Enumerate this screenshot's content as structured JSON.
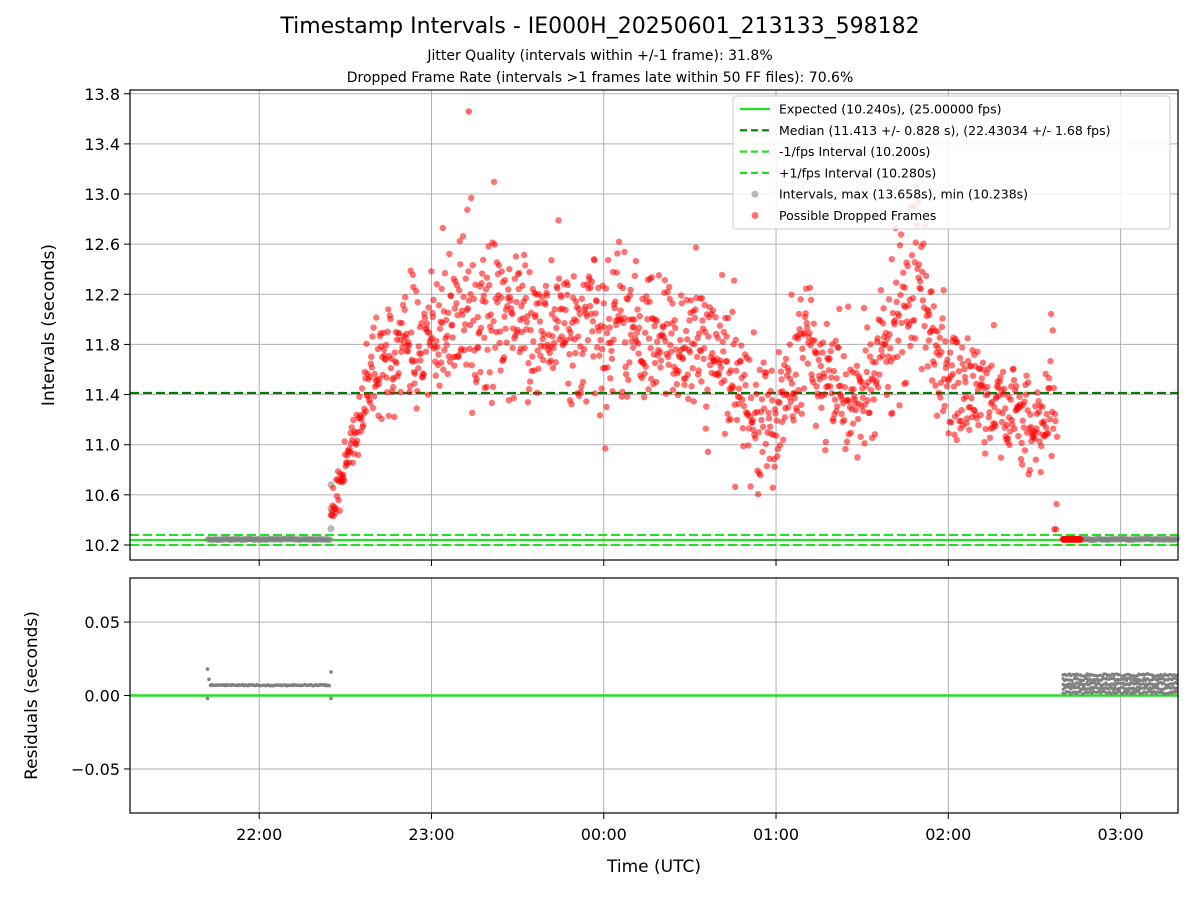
{
  "header": {
    "title": "Timestamp Intervals - IE000H_20250601_213133_598182",
    "subtitle_1": "Jitter Quality (intervals within +/-1 frame): 31.8%",
    "subtitle_2": "Dropped Frame Rate (intervals >1 frames late within 50 FF files): 70.6%"
  },
  "colors": {
    "expected": "#22e022",
    "median": "#008000",
    "fps_interval": "#22e022",
    "intervals": "#808080",
    "dropped": "#ff0000",
    "grid": "#b0b0b0"
  },
  "chart_data": [
    {
      "type": "scatter",
      "ylabel": "Intervals (seconds)",
      "xlim": [
        "21:15",
        "03:20"
      ],
      "ylim": [
        10.08,
        13.83
      ],
      "x_ticks": [
        "22:00",
        "23:00",
        "00:00",
        "01:00",
        "02:00",
        "03:00"
      ],
      "y_ticks": [
        "10.2",
        "10.6",
        "11.0",
        "11.4",
        "11.8",
        "12.2",
        "12.6",
        "13.0",
        "13.4",
        "13.8"
      ],
      "grid": true,
      "legend_position": "top-right",
      "reference_lines": [
        {
          "label": "Expected (10.240s), (25.00000 fps)",
          "y": 10.24,
          "style": "solid",
          "color": "#22e022"
        },
        {
          "label": "Median (11.413 +/- 0.828 s), (22.43034 +/- 1.68 fps)",
          "y": 11.413,
          "style": "dashed",
          "color": "#008000"
        },
        {
          "label": "-1/fps Interval (10.200s)",
          "y": 10.2,
          "style": "dashed",
          "color": "#22e022"
        },
        {
          "label": "+1/fps Interval (10.280s)",
          "y": 10.28,
          "style": "dashed",
          "color": "#22e022"
        }
      ],
      "series": [
        {
          "name": "Intervals, max (13.658s), min (10.238s)",
          "color": "#808080",
          "segments": [
            {
              "x_start": "21:42",
              "x_end": "22:25",
              "y": 10.245
            },
            {
              "x_start": "02:40",
              "x_end": "03:20",
              "y": 10.245
            }
          ],
          "points": [
            {
              "x": "22:25",
              "y": 10.33
            },
            {
              "x": "22:25",
              "y": 10.49
            },
            {
              "x": "22:25",
              "y": 10.68
            }
          ]
        },
        {
          "name": "Possible Dropped Frames",
          "color": "#ff0000",
          "max": 13.658,
          "profile": [
            {
              "x": "22:25",
              "y": 10.45,
              "spread": 0.12
            },
            {
              "x": "22:32",
              "y": 11.0,
              "spread": 0.2
            },
            {
              "x": "22:40",
              "y": 11.55,
              "spread": 0.3
            },
            {
              "x": "22:50",
              "y": 11.8,
              "spread": 0.35
            },
            {
              "x": "23:00",
              "y": 11.85,
              "spread": 0.4
            },
            {
              "x": "23:10",
              "y": 12.0,
              "spread": 0.55
            },
            {
              "x": "23:20",
              "y": 12.05,
              "spread": 0.45
            },
            {
              "x": "23:40",
              "y": 11.95,
              "spread": 0.42
            },
            {
              "x": "00:00",
              "y": 11.9,
              "spread": 0.45
            },
            {
              "x": "00:20",
              "y": 11.85,
              "spread": 0.42
            },
            {
              "x": "00:40",
              "y": 11.7,
              "spread": 0.45
            },
            {
              "x": "00:50",
              "y": 11.3,
              "spread": 0.42
            },
            {
              "x": "01:00",
              "y": 11.2,
              "spread": 0.42
            },
            {
              "x": "01:10",
              "y": 11.8,
              "spread": 0.45
            },
            {
              "x": "01:20",
              "y": 11.4,
              "spread": 0.42
            },
            {
              "x": "01:30",
              "y": 11.35,
              "spread": 0.42
            },
            {
              "x": "01:40",
              "y": 11.85,
              "spread": 0.5
            },
            {
              "x": "01:50",
              "y": 12.3,
              "spread": 0.55
            },
            {
              "x": "02:00",
              "y": 11.45,
              "spread": 0.38
            },
            {
              "x": "02:10",
              "y": 11.45,
              "spread": 0.38
            },
            {
              "x": "02:20",
              "y": 11.3,
              "spread": 0.32
            },
            {
              "x": "02:30",
              "y": 11.1,
              "spread": 0.3
            },
            {
              "x": "02:36",
              "y": 11.4,
              "spread": 0.5
            },
            {
              "x": "02:38",
              "y": 10.6,
              "spread": 0.3
            }
          ],
          "cluster": {
            "x_start": "02:40",
            "x_end": "02:46",
            "y": 10.245
          }
        }
      ]
    },
    {
      "type": "scatter",
      "xlabel": "Time (UTC)",
      "ylabel": "Residuals (seconds)",
      "xlim": [
        "21:15",
        "03:20"
      ],
      "ylim": [
        -0.08,
        0.08
      ],
      "x_ticks": [
        "22:00",
        "23:00",
        "00:00",
        "01:00",
        "02:00",
        "03:00"
      ],
      "y_ticks": [
        "0.05",
        "0.00",
        "−0.05"
      ],
      "grid": true,
      "reference_line": {
        "y": 0.0,
        "color": "#22e022"
      },
      "series": [
        {
          "color": "#808080",
          "segments": [
            {
              "x_start": "21:42",
              "x_end": "22:25",
              "y": 0.007,
              "edge_values": [
                0.018,
                0.011,
                -0.002,
                0.016
              ]
            },
            {
              "x_start": "02:40",
              "x_end": "03:20",
              "y_min": 0.001,
              "y_max": 0.016
            }
          ]
        }
      ]
    }
  ]
}
